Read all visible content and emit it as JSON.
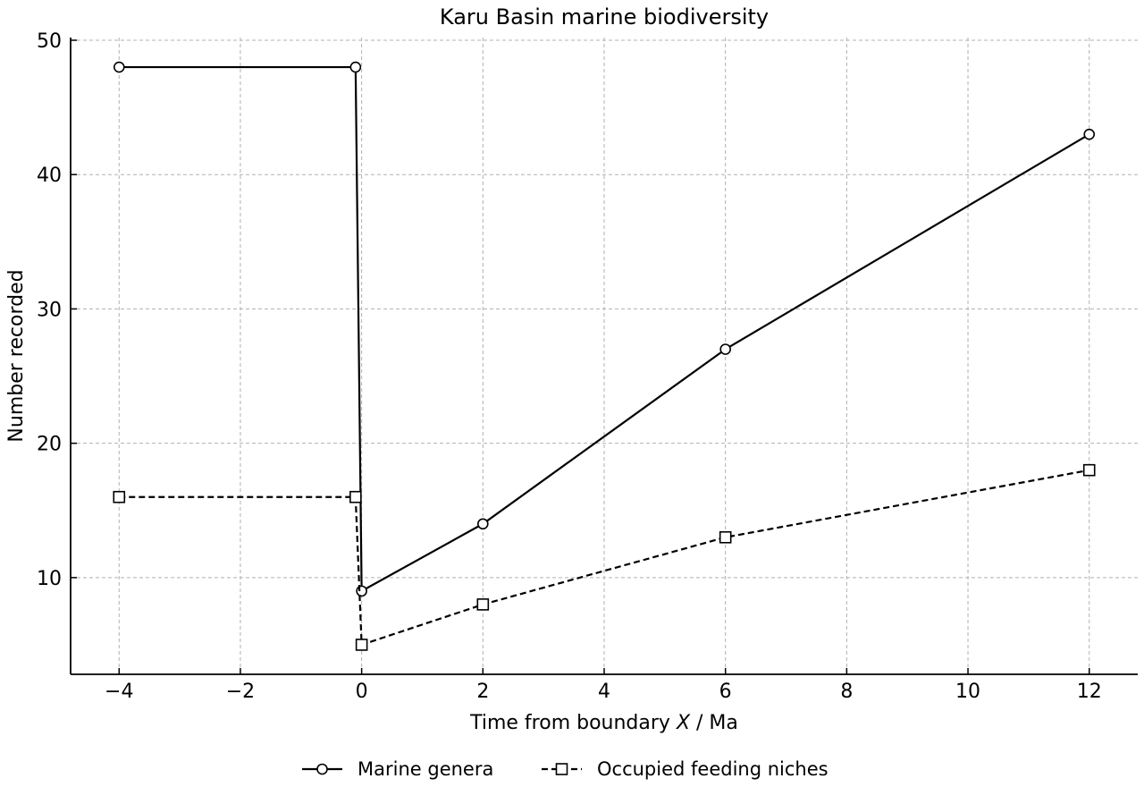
{
  "chart_data": {
    "type": "line",
    "title": "Karu Basin marine biodiversity",
    "xlabel_prefix": "Time from boundary ",
    "xlabel_var": "X",
    "xlabel_suffix": " / Ma",
    "ylabel": "Number recorded",
    "xlim": [
      -4.8,
      12.8
    ],
    "ylim": [
      2.8,
      50.2
    ],
    "xticks": [
      -4,
      -2,
      0,
      2,
      4,
      6,
      8,
      10,
      12
    ],
    "xtick_labels": [
      "−4",
      "−2",
      "0",
      "2",
      "4",
      "6",
      "8",
      "10",
      "12"
    ],
    "yticks": [
      10,
      20,
      30,
      40,
      50
    ],
    "ytick_labels": [
      "10",
      "20",
      "30",
      "40",
      "50"
    ],
    "grid": true,
    "legend_position": "bottom-center",
    "series": [
      {
        "name": "Marine genera",
        "x": [
          -4,
          -0.1,
          0,
          2,
          6,
          12
        ],
        "y": [
          48,
          48,
          9,
          14,
          27,
          43
        ],
        "color": "#000000",
        "line_style": "solid",
        "marker": "circle"
      },
      {
        "name": "Occupied feeding niches",
        "x": [
          -4,
          -0.1,
          0,
          2,
          6,
          12
        ],
        "y": [
          16,
          16,
          5,
          8,
          13,
          18
        ],
        "color": "#000000",
        "line_style": "dashed",
        "marker": "square"
      }
    ]
  }
}
